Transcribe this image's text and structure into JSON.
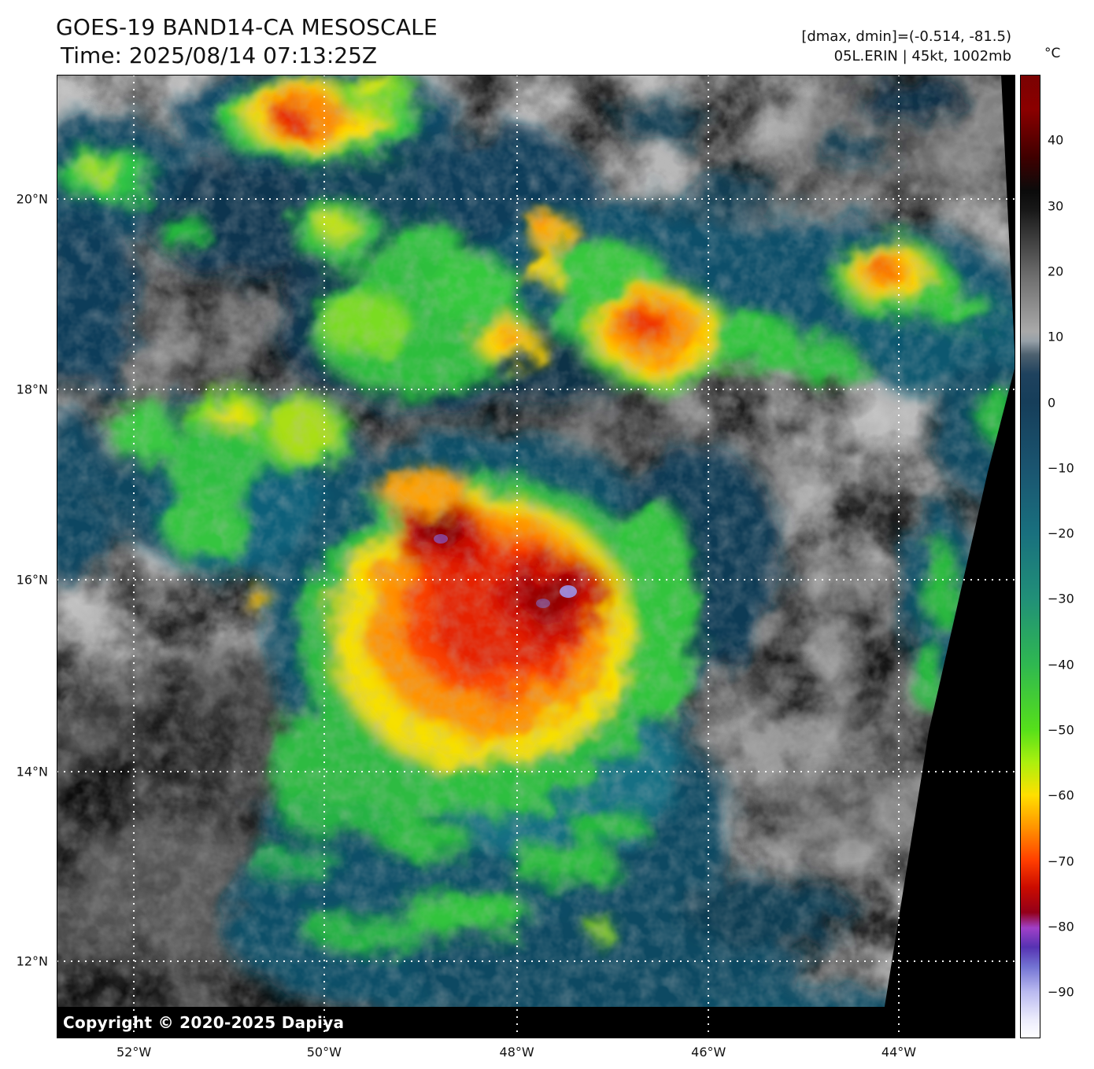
{
  "header": {
    "title": "GOES-19 BAND14-CA MESOSCALE",
    "time_line": "Time: 2025/08/14 07:13:25Z",
    "stats_line": "[dmax, dmin]=(-0.514, -81.5)",
    "storm_line": "05L.ERIN | 45kt, 1002mb"
  },
  "map": {
    "copyright": "Copyright © 2020-2025 Dapiya",
    "lat_ticks": [
      {
        "label": "20°N",
        "f": 0.129
      },
      {
        "label": "18°N",
        "f": 0.3265
      },
      {
        "label": "16°N",
        "f": 0.524
      },
      {
        "label": "14°N",
        "f": 0.723
      },
      {
        "label": "12°N",
        "f": 0.92
      }
    ],
    "lon_ticks": [
      {
        "label": "52°W",
        "f": 0.0805
      },
      {
        "label": "50°W",
        "f": 0.279
      },
      {
        "label": "48°W",
        "f": 0.48
      },
      {
        "label": "46°W",
        "f": 0.68
      },
      {
        "label": "44°W",
        "f": 0.8785
      }
    ]
  },
  "colorbar": {
    "unit_label": "°C",
    "ticks": [
      {
        "label": "40",
        "f": 0.068
      },
      {
        "label": "30",
        "f": 0.136
      },
      {
        "label": "20",
        "f": 0.204
      },
      {
        "label": "10",
        "f": 0.272
      },
      {
        "label": "0",
        "f": 0.34
      },
      {
        "label": "−10",
        "f": 0.408
      },
      {
        "label": "−20",
        "f": 0.476
      },
      {
        "label": "−30",
        "f": 0.544
      },
      {
        "label": "−40",
        "f": 0.612
      },
      {
        "label": "−50",
        "f": 0.68
      },
      {
        "label": "−60",
        "f": 0.748
      },
      {
        "label": "−70",
        "f": 0.816
      },
      {
        "label": "−80",
        "f": 0.884
      },
      {
        "label": "−90",
        "f": 0.952
      }
    ]
  },
  "chart_data": {
    "type": "heatmap",
    "title": "GOES-19 BAND14-CA MESOSCALE",
    "subtitle": "Time: 2025/08/14 07:13:25Z",
    "annotations": [
      "[dmax, dmin]=(-0.514, -81.5)",
      "05L.ERIN | 45kt, 1002mb"
    ],
    "satellite": "GOES-19",
    "band": "BAND14-CA MESOSCALE",
    "timestamp_utc": "2025/08/14 07:13:25Z",
    "storm": {
      "id": "05L",
      "name": "ERIN",
      "intensity_kt": 45,
      "pressure_mb": 1002
    },
    "dmax_c": -0.514,
    "dmin_c": -81.5,
    "x_axis": {
      "label": "longitude",
      "tick_labels": [
        "52°W",
        "50°W",
        "48°W",
        "46°W",
        "44°W"
      ],
      "approx_range_deg_w": [
        52.8,
        42.8
      ]
    },
    "y_axis": {
      "label": "latitude",
      "tick_labels": [
        "20°N",
        "18°N",
        "16°N",
        "14°N",
        "12°N"
      ],
      "approx_range_deg_n": [
        11.2,
        21.3
      ]
    },
    "colorbar": {
      "unit": "°C",
      "tick_values": [
        40,
        30,
        20,
        10,
        0,
        -10,
        -20,
        -30,
        -40,
        -50,
        -60,
        -70,
        -80,
        -90
      ],
      "approx_value_range": [
        50,
        -97
      ]
    },
    "grid": "white dotted lat/lon graticule every 2 degrees",
    "legend_position": "vertical colorbar at right",
    "features": [
      "tropical storm Erin: large cold convective burst (cloud tops -60 to -81.5C, yellow/orange/red with small purple pixels) centered near 15.8N 47.8W",
      "coldest overshooting tops near 16.0N 47.6W and 16.6N 48.9W",
      "band of moderate convection (-40 to -70C) stretching along 18.2-19.5N from 53W to 43W",
      "isolated cold cells near 21N 49.5W, 18.8N 46.2W, 19.3N 44.1W",
      "warm gray low clouds elsewhere; black no-data wedge at lower-right edge of mesoscale sector"
    ]
  }
}
